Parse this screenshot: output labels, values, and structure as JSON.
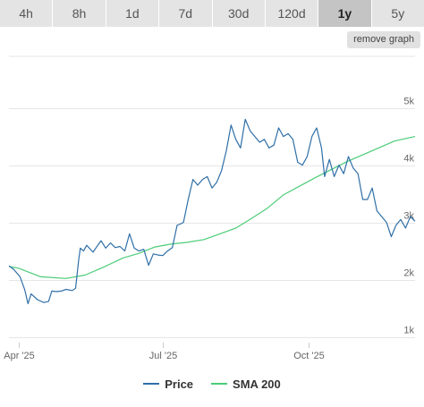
{
  "timeframes": [
    {
      "label": "4h",
      "active": false
    },
    {
      "label": "8h",
      "active": false
    },
    {
      "label": "1d",
      "active": false
    },
    {
      "label": "7d",
      "active": false
    },
    {
      "label": "30d",
      "active": false
    },
    {
      "label": "120d",
      "active": false
    },
    {
      "label": "1y",
      "active": true
    },
    {
      "label": "5y",
      "active": false
    }
  ],
  "remove_graph_label": "remove graph",
  "chart_data": {
    "type": "line",
    "title": "",
    "xlabel": "",
    "ylabel": "",
    "ylim": [
      900,
      5900
    ],
    "x_range": [
      "2025-03-26",
      "2025-12-07"
    ],
    "x_ticks": [
      {
        "date": "2025-04-01",
        "label": "Apr '25"
      },
      {
        "date": "2025-07-01",
        "label": "Jul '25"
      },
      {
        "date": "2025-10-01",
        "label": "Oct '25"
      }
    ],
    "y_ticks": [
      {
        "value": 1000,
        "label": "1k"
      },
      {
        "value": 2000,
        "label": "2k"
      },
      {
        "value": 3000,
        "label": "3k"
      },
      {
        "value": 4000,
        "label": "4k"
      },
      {
        "value": 5000,
        "label": "5k"
      }
    ],
    "grid": true,
    "legend_position": "bottom",
    "series": [
      {
        "name": "Price",
        "color": "#2f6fa7",
        "points": [
          [
            "2025-03-26",
            2240
          ],
          [
            "2025-03-29",
            2180
          ],
          [
            "2025-04-02",
            2050
          ],
          [
            "2025-04-05",
            1820
          ],
          [
            "2025-04-07",
            1580
          ],
          [
            "2025-04-09",
            1750
          ],
          [
            "2025-04-13",
            1650
          ],
          [
            "2025-04-17",
            1600
          ],
          [
            "2025-04-20",
            1620
          ],
          [
            "2025-04-22",
            1800
          ],
          [
            "2025-04-25",
            1790
          ],
          [
            "2025-04-28",
            1800
          ],
          [
            "2025-05-01",
            1830
          ],
          [
            "2025-05-05",
            1810
          ],
          [
            "2025-05-07",
            1850
          ],
          [
            "2025-05-09",
            2350
          ],
          [
            "2025-05-10",
            2550
          ],
          [
            "2025-05-12",
            2500
          ],
          [
            "2025-05-14",
            2600
          ],
          [
            "2025-05-18",
            2480
          ],
          [
            "2025-05-20",
            2560
          ],
          [
            "2025-05-23",
            2680
          ],
          [
            "2025-05-26",
            2550
          ],
          [
            "2025-05-29",
            2640
          ],
          [
            "2025-06-01",
            2560
          ],
          [
            "2025-06-04",
            2580
          ],
          [
            "2025-06-07",
            2500
          ],
          [
            "2025-06-10",
            2800
          ],
          [
            "2025-06-13",
            2550
          ],
          [
            "2025-06-16",
            2500
          ],
          [
            "2025-06-19",
            2530
          ],
          [
            "2025-06-22",
            2250
          ],
          [
            "2025-06-25",
            2450
          ],
          [
            "2025-06-28",
            2430
          ],
          [
            "2025-07-01",
            2420
          ],
          [
            "2025-07-04",
            2500
          ],
          [
            "2025-07-07",
            2560
          ],
          [
            "2025-07-10",
            2950
          ],
          [
            "2025-07-12",
            2970
          ],
          [
            "2025-07-14",
            3000
          ],
          [
            "2025-07-17",
            3400
          ],
          [
            "2025-07-20",
            3750
          ],
          [
            "2025-07-23",
            3650
          ],
          [
            "2025-07-26",
            3750
          ],
          [
            "2025-07-29",
            3800
          ],
          [
            "2025-08-01",
            3600
          ],
          [
            "2025-08-04",
            3700
          ],
          [
            "2025-08-07",
            3900
          ],
          [
            "2025-08-10",
            4250
          ],
          [
            "2025-08-13",
            4700
          ],
          [
            "2025-08-16",
            4450
          ],
          [
            "2025-08-19",
            4300
          ],
          [
            "2025-08-22",
            4800
          ],
          [
            "2025-08-25",
            4600
          ],
          [
            "2025-08-28",
            4500
          ],
          [
            "2025-08-31",
            4400
          ],
          [
            "2025-09-03",
            4450
          ],
          [
            "2025-09-06",
            4300
          ],
          [
            "2025-09-09",
            4350
          ],
          [
            "2025-09-12",
            4650
          ],
          [
            "2025-09-15",
            4500
          ],
          [
            "2025-09-18",
            4550
          ],
          [
            "2025-09-21",
            4450
          ],
          [
            "2025-09-24",
            4050
          ],
          [
            "2025-09-27",
            4000
          ],
          [
            "2025-09-30",
            4150
          ],
          [
            "2025-10-03",
            4500
          ],
          [
            "2025-10-06",
            4650
          ],
          [
            "2025-10-09",
            4300
          ],
          [
            "2025-10-11",
            3800
          ],
          [
            "2025-10-14",
            4100
          ],
          [
            "2025-10-17",
            3800
          ],
          [
            "2025-10-20",
            4000
          ],
          [
            "2025-10-23",
            3850
          ],
          [
            "2025-10-26",
            4150
          ],
          [
            "2025-10-29",
            3950
          ],
          [
            "2025-11-01",
            3850
          ],
          [
            "2025-11-04",
            3400
          ],
          [
            "2025-11-07",
            3400
          ],
          [
            "2025-11-10",
            3600
          ],
          [
            "2025-11-13",
            3200
          ],
          [
            "2025-11-16",
            3100
          ],
          [
            "2025-11-19",
            3000
          ],
          [
            "2025-11-22",
            2750
          ],
          [
            "2025-11-25",
            2950
          ],
          [
            "2025-11-28",
            3050
          ],
          [
            "2025-12-01",
            2900
          ],
          [
            "2025-12-04",
            3100
          ],
          [
            "2025-12-07",
            3020
          ]
        ]
      },
      {
        "name": "SMA 200",
        "color": "#4ccc78",
        "points": [
          [
            "2025-03-26",
            2230
          ],
          [
            "2025-04-01",
            2200
          ],
          [
            "2025-04-15",
            2050
          ],
          [
            "2025-05-01",
            2020
          ],
          [
            "2025-05-13",
            2080
          ],
          [
            "2025-05-24",
            2210
          ],
          [
            "2025-06-06",
            2380
          ],
          [
            "2025-06-16",
            2460
          ],
          [
            "2025-06-26",
            2570
          ],
          [
            "2025-07-06",
            2620
          ],
          [
            "2025-07-16",
            2650
          ],
          [
            "2025-07-27",
            2700
          ],
          [
            "2025-08-06",
            2800
          ],
          [
            "2025-08-16",
            2900
          ],
          [
            "2025-08-26",
            3070
          ],
          [
            "2025-09-05",
            3250
          ],
          [
            "2025-09-15",
            3480
          ],
          [
            "2025-09-25",
            3630
          ],
          [
            "2025-10-05",
            3780
          ],
          [
            "2025-10-15",
            3920
          ],
          [
            "2025-10-25",
            4060
          ],
          [
            "2025-11-04",
            4180
          ],
          [
            "2025-11-14",
            4300
          ],
          [
            "2025-11-24",
            4420
          ],
          [
            "2025-12-07",
            4500
          ]
        ]
      }
    ]
  }
}
